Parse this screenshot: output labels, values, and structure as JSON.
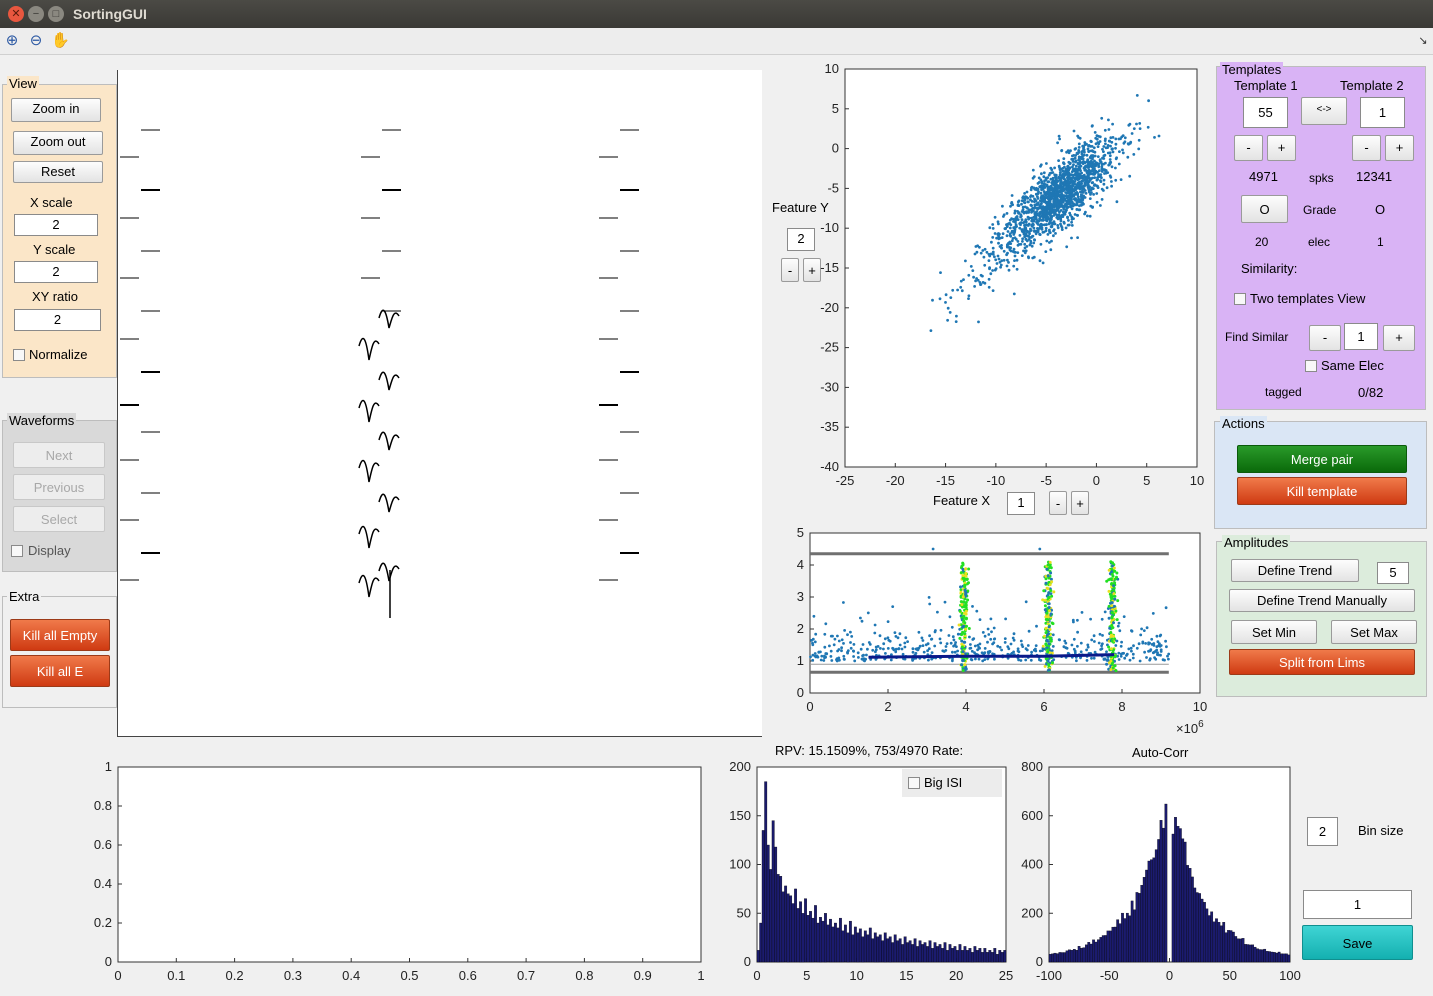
{
  "window": {
    "title": "SortingGUI"
  },
  "toolbar": {
    "icons": [
      "zoom-in-icon",
      "zoom-out-icon",
      "pan-hand-icon"
    ]
  },
  "view_panel": {
    "title": "View",
    "zoom_in": "Zoom in",
    "zoom_out": "Zoom out",
    "reset": "Reset",
    "x_scale_label": "X scale",
    "x_scale_value": "2",
    "y_scale_label": "Y scale",
    "y_scale_value": "2",
    "xy_ratio_label": "XY ratio",
    "xy_ratio_value": "2",
    "normalize_label": "Normalize"
  },
  "waveforms_panel": {
    "title": "Waveforms",
    "next": "Next",
    "previous": "Previous",
    "select": "Select",
    "display_label": "Display"
  },
  "extra_panel": {
    "title": "Extra",
    "kill_all_empty": "Kill all Empty",
    "kill_all_e": "Kill all E"
  },
  "templates_panel": {
    "title": "Templates",
    "template1_label": "Template 1",
    "template2_label": "Template 2",
    "template1_value": "55",
    "template2_value": "1",
    "swap_label": "<->",
    "minus": "-",
    "plus": "+",
    "spks1": "4971",
    "spks_label": "spks",
    "spks2": "12341",
    "grade_button": "O",
    "grade_label": "Grade",
    "grade2": "O",
    "elec1": "20",
    "elec_label": "elec",
    "elec2": "1",
    "similarity_label": "Similarity:",
    "two_templates_label": "Two templates View",
    "find_similar_label": "Find Similar",
    "find_similar_value": "1",
    "same_elec_label": "Same Elec",
    "tagged_label": "tagged",
    "tagged_value": "0/82"
  },
  "actions_panel": {
    "title": "Actions",
    "merge_pair": "Merge pair",
    "kill_template": "Kill template"
  },
  "amplitudes_panel": {
    "title": "Amplitudes",
    "define_trend": "Define Trend",
    "trend_value": "5",
    "define_trend_manually": "Define Trend Manually",
    "set_min": "Set Min",
    "set_max": "Set Max",
    "split_from_lims": "Split from Lims"
  },
  "feature_controls": {
    "feature_y_label": "Feature Y",
    "feature_y_value": "2",
    "feature_x_label": "Feature X",
    "feature_x_value": "1",
    "minus": "-",
    "plus": "+"
  },
  "isi": {
    "header": "RPV: 15.1509%, 753/4970 Rate:",
    "big_isi_label": "Big ISI"
  },
  "autocorr": {
    "title": "Auto-Corr"
  },
  "bottom_right": {
    "bin_value": "2",
    "bin_size_label": "Bin size",
    "value_field": "1",
    "save": "Save"
  },
  "colors": {
    "scatter": "#1f77b4",
    "bars": "#1b1b6e",
    "templates_bg": "#d9b3f5",
    "actions_bg": "#dae6f5",
    "amplitudes_bg": "#dcecdc",
    "view_bg": "#fbe6c8"
  },
  "chart_data": [
    {
      "type": "scatter",
      "name": "feature-scatter",
      "xlabel": "Feature X",
      "ylabel": "Feature Y",
      "xlim": [
        -25,
        10
      ],
      "ylim": [
        -40,
        10
      ],
      "xticks": [
        "-25",
        "-20",
        "-15",
        "-10",
        "-5",
        "0",
        "5",
        "10"
      ],
      "yticks": [
        "10",
        "5",
        "0",
        "-5",
        "-10",
        "-15",
        "-20",
        "-25",
        "-30",
        "-35",
        "-40"
      ],
      "cloud": {
        "center": [
          -3,
          -5
        ],
        "slope": 1.25,
        "spread_major": 7,
        "spread_minor": 2.6,
        "points": 1600
      }
    },
    {
      "type": "scatter",
      "name": "amplitude-time",
      "xlim": [
        0,
        10
      ],
      "ylim": [
        0,
        5
      ],
      "xticks": [
        "0",
        "2",
        "4",
        "6",
        "8",
        "10"
      ],
      "yticks": [
        "5",
        "4",
        "3",
        "2",
        "1",
        "0"
      ],
      "exponent_label": "×10",
      "exponent": "6",
      "limits": {
        "upper": 4.35,
        "lower": 0.65
      },
      "trend": [
        [
          1.5,
          1.12
        ],
        [
          4,
          1.15
        ],
        [
          6,
          1.15
        ],
        [
          7.8,
          1.2
        ]
      ],
      "bursts": [
        3.95,
        6.1,
        7.75
      ],
      "xmax_data": 9.2
    },
    {
      "type": "line",
      "name": "empty-axes",
      "xlim": [
        0,
        1
      ],
      "ylim": [
        0,
        1
      ],
      "xticks": [
        "0",
        "0.1",
        "0.2",
        "0.3",
        "0.4",
        "0.5",
        "0.6",
        "0.7",
        "0.8",
        "0.9",
        "1"
      ],
      "yticks": [
        "1",
        "0.8",
        "0.6",
        "0.4",
        "0.2",
        "0"
      ]
    },
    {
      "type": "bar",
      "name": "isi-histogram",
      "xlim": [
        0,
        25
      ],
      "ylim": [
        0,
        200
      ],
      "xticks": [
        "0",
        "5",
        "10",
        "15",
        "20",
        "25"
      ],
      "yticks": [
        "200",
        "150",
        "100",
        "50",
        "0"
      ],
      "bin_width": 0.25,
      "values": [
        12,
        40,
        135,
        185,
        120,
        95,
        145,
        118,
        90,
        88,
        72,
        78,
        70,
        68,
        60,
        75,
        55,
        62,
        50,
        65,
        48,
        52,
        45,
        58,
        40,
        46,
        42,
        50,
        38,
        44,
        36,
        40,
        35,
        45,
        32,
        38,
        30,
        42,
        28,
        36,
        30,
        34,
        26,
        32,
        28,
        35,
        24,
        30,
        26,
        28,
        22,
        30,
        24,
        26,
        20,
        28,
        22,
        24,
        18,
        26,
        20,
        22,
        18,
        24,
        16,
        22,
        18,
        20,
        16,
        22,
        14,
        20,
        16,
        18,
        14,
        20,
        12,
        18,
        14,
        16,
        12,
        18,
        12,
        16,
        12,
        14,
        10,
        16,
        12,
        14,
        10,
        14,
        10,
        12,
        10,
        14,
        8,
        12,
        10,
        12
      ]
    },
    {
      "type": "bar",
      "name": "auto-correlogram",
      "title": "Auto-Corr",
      "xlim": [
        -100,
        100
      ],
      "ylim": [
        0,
        800
      ],
      "xticks": [
        "-100",
        "-50",
        "0",
        "50",
        "100"
      ],
      "yticks": [
        "800",
        "600",
        "400",
        "200",
        "0"
      ],
      "peak": 680,
      "width": 28,
      "baseline": 12
    }
  ]
}
